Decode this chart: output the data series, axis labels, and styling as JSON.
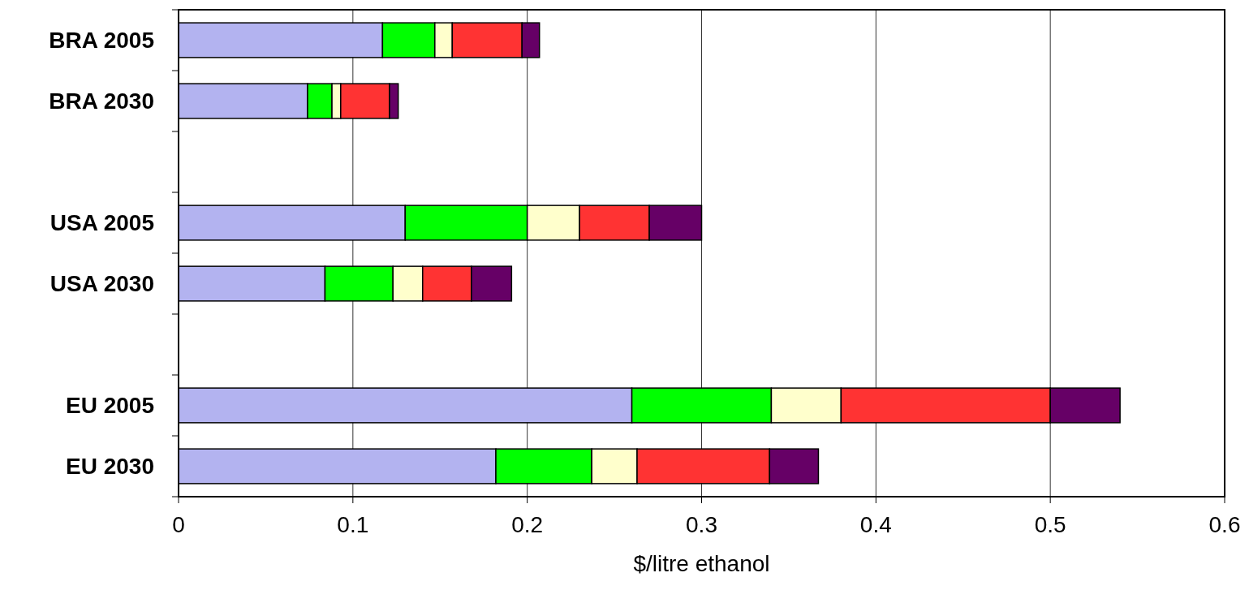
{
  "chart_data": {
    "type": "bar",
    "orientation": "horizontal",
    "stacked": true,
    "categories": [
      "BRA 2005",
      "BRA 2030",
      null,
      "USA 2005",
      "USA 2030",
      null,
      "EU 2005",
      "EU 2030"
    ],
    "series": [
      {
        "color": "#b3b3f0",
        "values": [
          0.117,
          0.074,
          null,
          0.13,
          0.084,
          null,
          0.26,
          0.182
        ]
      },
      {
        "color": "#00ff00",
        "values": [
          0.03,
          0.014,
          null,
          0.07,
          0.039,
          null,
          0.08,
          0.055
        ]
      },
      {
        "color": "#ffffcc",
        "values": [
          0.01,
          0.005,
          null,
          0.03,
          0.017,
          null,
          0.04,
          0.026
        ]
      },
      {
        "color": "#ff3333",
        "values": [
          0.04,
          0.028,
          null,
          0.04,
          0.028,
          null,
          0.12,
          0.076
        ]
      },
      {
        "color": "#660066",
        "values": [
          0.01,
          0.005,
          null,
          0.03,
          0.023,
          null,
          0.04,
          0.028
        ]
      }
    ],
    "xlim": [
      0,
      0.6
    ],
    "xticks": [
      0,
      0.1,
      0.2,
      0.3,
      0.4,
      0.5,
      0.6
    ],
    "xlabel": "$/litre ethanol",
    "grid": "x"
  }
}
